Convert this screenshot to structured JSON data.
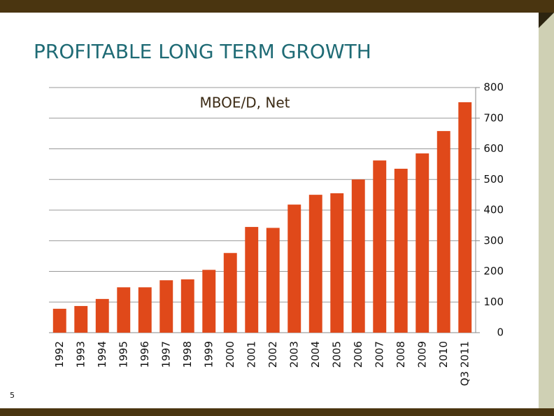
{
  "page_number": "5",
  "chart_data": {
    "type": "bar",
    "title": "PROFITABLE LONG TERM GROWTH",
    "subtitle": "MBOE/D, Net",
    "categories": [
      "1992",
      "1993",
      "1994",
      "1995",
      "1996",
      "1997",
      "1998",
      "1999",
      "2000",
      "2001",
      "2002",
      "2003",
      "2004",
      "2005",
      "2006",
      "2007",
      "2008",
      "2009",
      "2010",
      "Q3 2011"
    ],
    "values": [
      78,
      87,
      110,
      148,
      148,
      171,
      174,
      205,
      260,
      345,
      342,
      418,
      450,
      455,
      500,
      562,
      535,
      585,
      658,
      752
    ],
    "color": "#e0491a",
    "ylim": [
      0,
      800
    ],
    "yticks": [
      0,
      100,
      200,
      300,
      400,
      500,
      600,
      700,
      800
    ],
    "grid": true,
    "y_axis_side": "right"
  }
}
